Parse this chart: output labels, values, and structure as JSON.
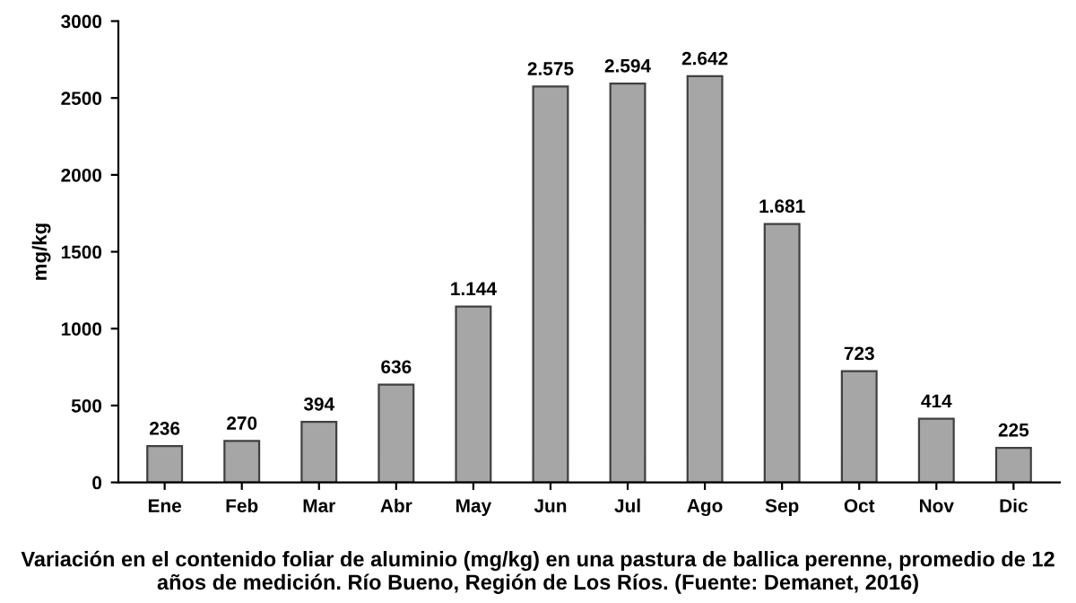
{
  "chart_data": {
    "type": "bar",
    "ylabel": "mg/kg",
    "categories": [
      "Ene",
      "Feb",
      "Mar",
      "Abr",
      "May",
      "Jun",
      "Jul",
      "Ago",
      "Sep",
      "Oct",
      "Nov",
      "Dic"
    ],
    "values": [
      236,
      270,
      394,
      636,
      1144,
      2575,
      2594,
      2642,
      1681,
      723,
      414,
      225
    ],
    "value_labels": [
      "236",
      "270",
      "394",
      "636",
      "1.144",
      "2.575",
      "2.594",
      "2.642",
      "1.681",
      "723",
      "414",
      "225"
    ],
    "color": "#a6a6a6",
    "ylim": [
      0,
      3000
    ],
    "yticks": [
      0,
      500,
      1000,
      1500,
      2000,
      2500,
      3000
    ],
    "grid": false,
    "annotations": [
      "Variación en el contenido foliar de aluminio (mg/kg) en una pastura de ballica perenne, promedio de 12 años de medición. Río Bueno, Región de Los Ríos. (Fuente: Demanet, 2016)"
    ]
  }
}
